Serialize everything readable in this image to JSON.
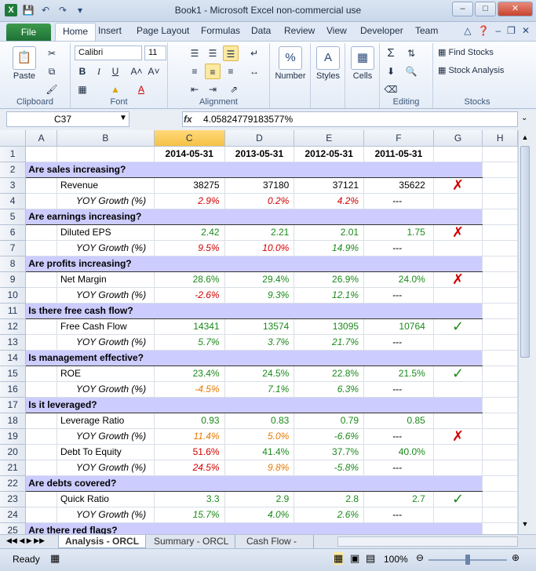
{
  "window": {
    "title": "Book1  -  Microsoft Excel non-commercial use"
  },
  "ribbon": {
    "tabs": [
      "Home",
      "Insert",
      "Page Layout",
      "Formulas",
      "Data",
      "Review",
      "View",
      "Developer",
      "Team"
    ],
    "file_tab": "File",
    "clipboard": {
      "paste": "Paste",
      "label": "Clipboard"
    },
    "font": {
      "name": "Calibri",
      "size": "11",
      "label": "Font"
    },
    "alignment": {
      "label": "Alignment"
    },
    "number": {
      "button": "Number",
      "icon": "%"
    },
    "styles": {
      "button": "Styles"
    },
    "cells": {
      "button": "Cells"
    },
    "editing": {
      "label": "Editing"
    },
    "stocks": {
      "find": "Find Stocks",
      "analysis": "Stock Analysis",
      "label": "Stocks"
    }
  },
  "formula_bar": {
    "name_box": "C37",
    "fx": "fx",
    "value": "4.05824779183577%"
  },
  "columns": [
    "A",
    "B",
    "C",
    "D",
    "E",
    "F",
    "G",
    "H"
  ],
  "sheet_rows": [
    {
      "row": "1",
      "kind": "header",
      "c": "2014-05-31",
      "d": "2013-05-31",
      "e": "2012-05-31",
      "f": "2011-05-31"
    },
    {
      "row": "2",
      "kind": "section",
      "label": "Are sales increasing?"
    },
    {
      "row": "3",
      "kind": "metric",
      "label": "Revenue",
      "c": "38275",
      "d": "37180",
      "e": "37121",
      "f": "35622",
      "color": "k",
      "mark": "✗"
    },
    {
      "row": "4",
      "kind": "growth",
      "label": "YOY Growth (%)",
      "c": "2.9%",
      "d": "0.2%",
      "e": "4.2%",
      "f": "---",
      "cc": "r",
      "dc": "r",
      "ec": "r"
    },
    {
      "row": "5",
      "kind": "section",
      "label": "Are earnings increasing?"
    },
    {
      "row": "6",
      "kind": "metric",
      "label": "Diluted EPS",
      "c": "2.42",
      "d": "2.21",
      "e": "2.01",
      "f": "1.75",
      "color": "g",
      "mark": "✗"
    },
    {
      "row": "7",
      "kind": "growth",
      "label": "YOY Growth (%)",
      "c": "9.5%",
      "d": "10.0%",
      "e": "14.9%",
      "f": "---",
      "cc": "r",
      "dc": "r",
      "ec": "g"
    },
    {
      "row": "8",
      "kind": "section",
      "label": "Are profits increasing?"
    },
    {
      "row": "9",
      "kind": "metric",
      "label": "Net Margin",
      "c": "28.6%",
      "d": "29.4%",
      "e": "26.9%",
      "f": "24.0%",
      "color": "g",
      "mark": "✗"
    },
    {
      "row": "10",
      "kind": "growth",
      "label": "YOY Growth (%)",
      "c": "-2.6%",
      "d": "9.3%",
      "e": "12.1%",
      "f": "---",
      "cc": "r",
      "dc": "g",
      "ec": "g"
    },
    {
      "row": "11",
      "kind": "section",
      "label": "Is there free cash flow?"
    },
    {
      "row": "12",
      "kind": "metric",
      "label": "Free Cash Flow",
      "c": "14341",
      "d": "13574",
      "e": "13095",
      "f": "10764",
      "color": "g",
      "mark": "✓"
    },
    {
      "row": "13",
      "kind": "growth",
      "label": "YOY Growth (%)",
      "c": "5.7%",
      "d": "3.7%",
      "e": "21.7%",
      "f": "---",
      "cc": "g",
      "dc": "g",
      "ec": "g"
    },
    {
      "row": "14",
      "kind": "section",
      "label": "Is management effective?"
    },
    {
      "row": "15",
      "kind": "metric",
      "label": "ROE",
      "c": "23.4%",
      "d": "24.5%",
      "e": "22.8%",
      "f": "21.5%",
      "color": "g",
      "mark": "✓"
    },
    {
      "row": "16",
      "kind": "growth",
      "label": "YOY Growth (%)",
      "c": "-4.5%",
      "d": "7.1%",
      "e": "6.3%",
      "f": "---",
      "cc": "o",
      "dc": "g",
      "ec": "g"
    },
    {
      "row": "17",
      "kind": "section",
      "label": "Is it leveraged?"
    },
    {
      "row": "18",
      "kind": "metric",
      "label": "Leverage Ratio",
      "c": "0.93",
      "d": "0.83",
      "e": "0.79",
      "f": "0.85",
      "color": "g",
      "mark": ""
    },
    {
      "row": "19",
      "kind": "growth",
      "label": "YOY Growth (%)",
      "c": "11.4%",
      "d": "5.0%",
      "e": "-6.6%",
      "f": "---",
      "cc": "o",
      "dc": "o",
      "ec": "g",
      "mark": "✗"
    },
    {
      "row": "20",
      "kind": "metric",
      "label": "Debt To Equity",
      "c": "51.6%",
      "d": "41.4%",
      "e": "37.7%",
      "f": "40.0%",
      "color": "mix",
      "mark": ""
    },
    {
      "row": "21",
      "kind": "growth",
      "label": "YOY Growth (%)",
      "c": "24.5%",
      "d": "9.8%",
      "e": "-5.8%",
      "f": "---",
      "cc": "r",
      "dc": "o",
      "ec": "g"
    },
    {
      "row": "22",
      "kind": "section",
      "label": "Are debts covered?"
    },
    {
      "row": "23",
      "kind": "metric",
      "label": "Quick Ratio",
      "c": "3.3",
      "d": "2.9",
      "e": "2.8",
      "f": "2.7",
      "color": "g",
      "mark": "✓"
    },
    {
      "row": "24",
      "kind": "growth",
      "label": "YOY Growth (%)",
      "c": "15.7%",
      "d": "4.0%",
      "e": "2.6%",
      "f": "---",
      "cc": "g",
      "dc": "g",
      "ec": "g"
    },
    {
      "row": "25",
      "kind": "section",
      "label": "Are there red flags?"
    }
  ],
  "sheet_tabs": [
    "Analysis - ORCL",
    "Summary - ORCL",
    "Cash Flow - ORC"
  ],
  "status": {
    "ready": "Ready",
    "zoom": "100%"
  },
  "colors": {
    "band": "#ccccff",
    "green": "#1b8a1b",
    "red": "#d10000",
    "orange": "#e57a00"
  }
}
